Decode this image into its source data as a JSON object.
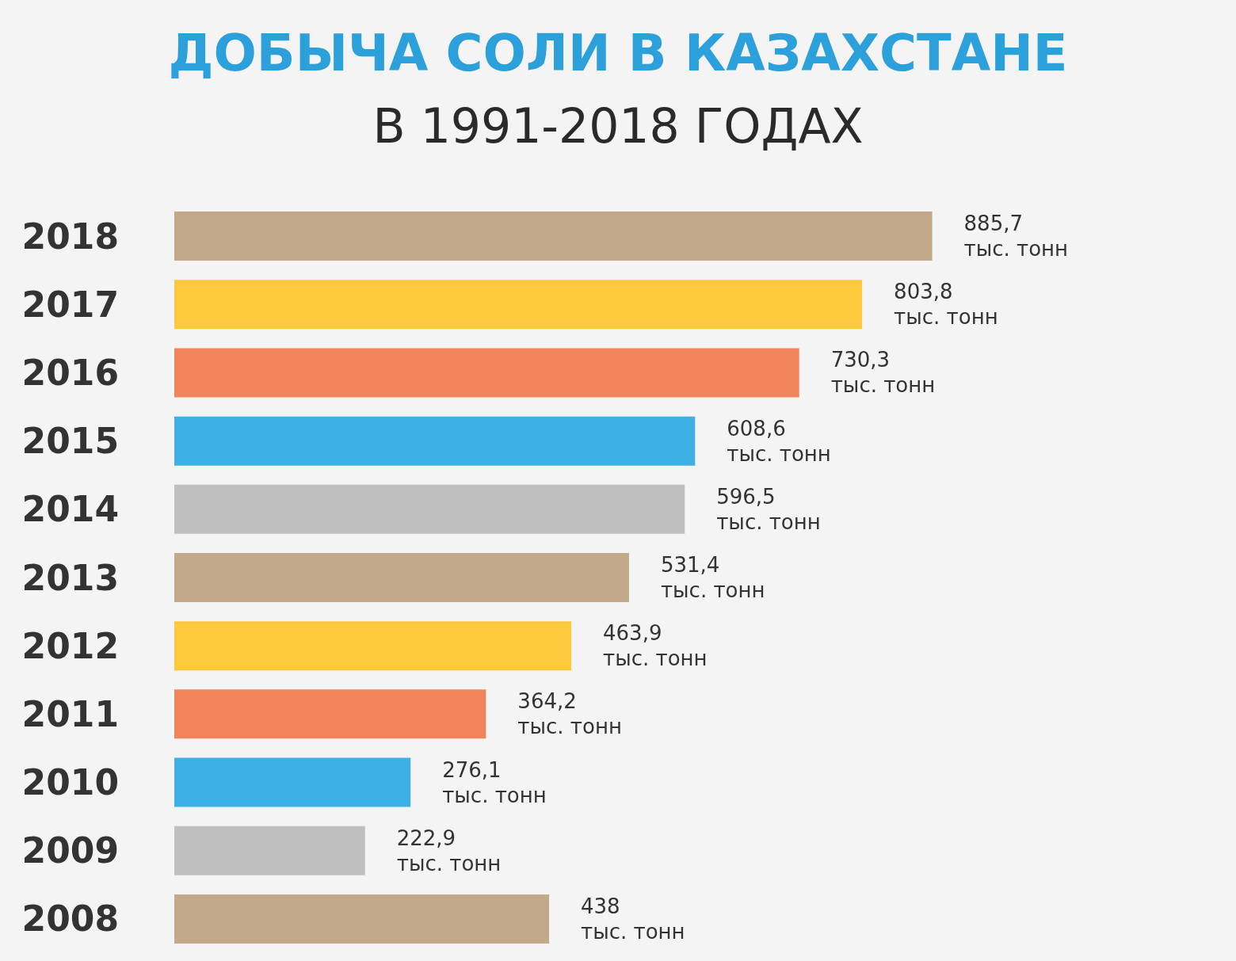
{
  "chart_data": {
    "type": "bar",
    "orientation": "horizontal",
    "title": "ДОБЫЧА СОЛИ В КАЗАХСТАНЕ",
    "subtitle": "В 1991-2018 ГОДАХ",
    "categories": [
      "2018",
      "2017",
      "2016",
      "2015",
      "2014",
      "2013",
      "2012",
      "2011",
      "2010",
      "2009",
      "2008"
    ],
    "values": [
      885.7,
      803.8,
      730.3,
      608.6,
      596.5,
      531.4,
      463.9,
      364.2,
      276.1,
      222.9,
      438
    ],
    "colors": [
      "#c2a98a",
      "#fcc83c",
      "#f0845b",
      "#3db0e6",
      "#bfbfbf",
      "#c2a98a",
      "#fcc83c",
      "#f0845b",
      "#3db0e6",
      "#bfbfbf",
      "#c2a98a"
    ],
    "value_labels": [
      "885,7 тыс. тонн",
      "803,8 тыс. тонн",
      "730,3 тыс. тонн",
      "608,6 тыс. тонн",
      "596,5 тыс. тонн",
      "531,4 тыс. тонн",
      "463,9 тыс. тонн",
      "364,2 тыс. тонн",
      "276,1 тыс. тонн",
      "222,9 тыс. тонн",
      "438 тыс. тонн"
    ]
  }
}
